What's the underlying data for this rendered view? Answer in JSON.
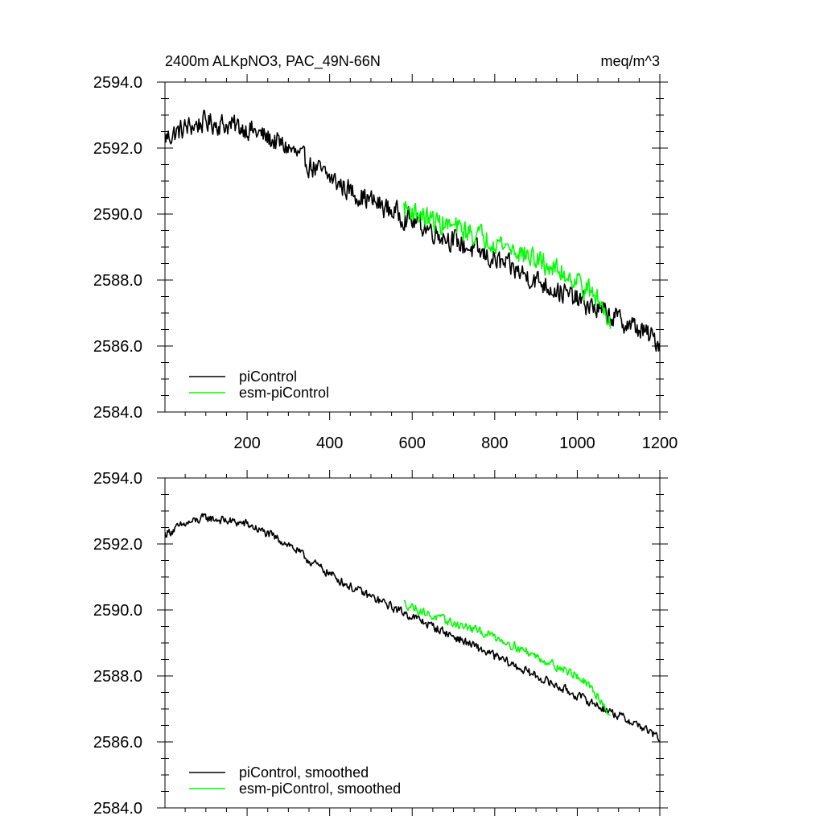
{
  "figure": {
    "title_left": "2400m ALKpNO3, PAC_49N-66N",
    "title_right": "meq/m^3"
  },
  "chart_data": [
    {
      "type": "line",
      "panel": "top",
      "title": "2400m ALKpNO3, PAC_49N-66N",
      "units": "meq/m^3",
      "xlim": [
        1,
        1200
      ],
      "ylim": [
        2584.0,
        2594.0
      ],
      "xticks": [
        200,
        400,
        600,
        800,
        1000,
        1200
      ],
      "xtick_labels": [
        "200",
        "400",
        "600",
        "800",
        "1000",
        "1200"
      ],
      "yticks": [
        2584.0,
        2586.0,
        2588.0,
        2590.0,
        2592.0,
        2594.0
      ],
      "ytick_labels": [
        "2584.0",
        "2586.0",
        "2588.0",
        "2590.0",
        "2592.0",
        "2594.0"
      ],
      "legend_position": "bottom-left",
      "series": [
        {
          "name": "piControl",
          "color": "#000000",
          "noise": 0.3,
          "x": [
            1,
            50,
            100,
            150,
            200,
            250,
            300,
            350,
            400,
            450,
            500,
            550,
            600,
            650,
            700,
            750,
            800,
            850,
            900,
            950,
            1000,
            1050,
            1100,
            1150,
            1200
          ],
          "values": [
            2592.3,
            2592.6,
            2592.8,
            2592.7,
            2592.6,
            2592.3,
            2592.0,
            2591.5,
            2591.1,
            2590.7,
            2590.4,
            2590.1,
            2589.8,
            2589.5,
            2589.2,
            2588.9,
            2588.6,
            2588.3,
            2588.0,
            2587.7,
            2587.4,
            2587.1,
            2586.8,
            2586.5,
            2586.1
          ]
        },
        {
          "name": "esm-piControl",
          "color": "#00ff00",
          "noise": 0.3,
          "x": [
            580,
            600,
            650,
            700,
            750,
            800,
            850,
            900,
            950,
            1000,
            1050,
            1080
          ],
          "values": [
            2590.2,
            2590.1,
            2589.8,
            2589.6,
            2589.4,
            2589.2,
            2588.9,
            2588.6,
            2588.3,
            2588.0,
            2587.4,
            2586.8
          ]
        }
      ]
    },
    {
      "type": "line",
      "panel": "bottom",
      "xlim": [
        1,
        1200
      ],
      "ylim": [
        2584.0,
        2594.0
      ],
      "xticks": [
        200,
        400,
        600,
        800,
        1000,
        1200
      ],
      "yticks": [
        2584.0,
        2586.0,
        2588.0,
        2590.0,
        2592.0,
        2594.0
      ],
      "ytick_labels": [
        "2584.0",
        "2586.0",
        "2588.0",
        "2590.0",
        "2592.0",
        "2594.0"
      ],
      "legend_position": "bottom-left",
      "series": [
        {
          "name": "piControl, smoothed",
          "color": "#000000",
          "noise": 0.12,
          "x": [
            1,
            50,
            100,
            150,
            200,
            250,
            300,
            350,
            400,
            450,
            500,
            550,
            600,
            650,
            700,
            750,
            800,
            850,
            900,
            950,
            1000,
            1050,
            1100,
            1150,
            1200
          ],
          "values": [
            2592.3,
            2592.6,
            2592.8,
            2592.7,
            2592.6,
            2592.3,
            2592.0,
            2591.5,
            2591.1,
            2590.7,
            2590.4,
            2590.1,
            2589.8,
            2589.5,
            2589.2,
            2588.9,
            2588.6,
            2588.3,
            2588.0,
            2587.7,
            2587.4,
            2587.1,
            2586.8,
            2586.5,
            2586.1
          ]
        },
        {
          "name": "esm-piControl, smoothed",
          "color": "#00ff00",
          "noise": 0.12,
          "x": [
            580,
            600,
            650,
            700,
            750,
            800,
            850,
            900,
            950,
            1000,
            1050,
            1080
          ],
          "values": [
            2590.2,
            2590.1,
            2589.8,
            2589.6,
            2589.4,
            2589.2,
            2588.9,
            2588.6,
            2588.3,
            2588.0,
            2587.4,
            2586.8
          ]
        }
      ]
    }
  ]
}
